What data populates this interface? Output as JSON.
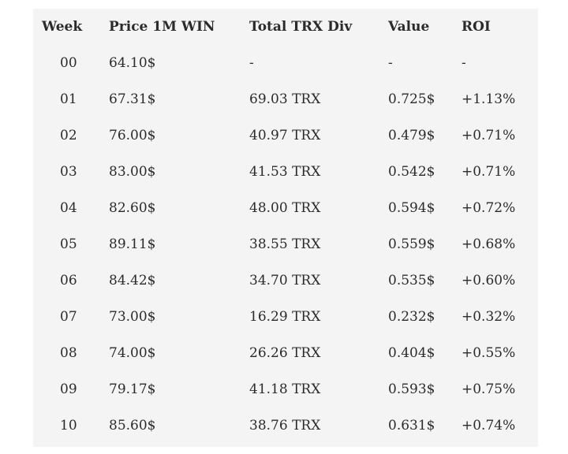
{
  "table": {
    "headers": [
      "Week",
      "Price 1M WIN",
      "Total TRX Div",
      "Value",
      "ROI"
    ],
    "rows": [
      [
        "00",
        "64.10$",
        "-",
        "-",
        "-"
      ],
      [
        "01",
        "67.31$",
        "69.03 TRX",
        "0.725$",
        "+1.13%"
      ],
      [
        "02",
        "76.00$",
        "40.97 TRX",
        "0.479$",
        "+0.71%"
      ],
      [
        "03",
        "83.00$",
        "41.53 TRX",
        "0.542$",
        "+0.71%"
      ],
      [
        "04",
        "82.60$",
        "48.00 TRX",
        "0.594$",
        "+0.72%"
      ],
      [
        "05",
        "89.11$",
        "38.55 TRX",
        "0.559$",
        "+0.68%"
      ],
      [
        "06",
        "84.42$",
        "34.70 TRX",
        "0.535$",
        "+0.60%"
      ],
      [
        "07",
        "73.00$",
        "16.29 TRX",
        "0.232$",
        "+0.32%"
      ],
      [
        "08",
        "74.00$",
        "26.26 TRX",
        "0.404$",
        "+0.55%"
      ],
      [
        "09",
        "79.17$",
        "41.18 TRX",
        "0.593$",
        "+0.75%"
      ],
      [
        "10",
        "85.60$",
        "38.76 TRX",
        "0.631$",
        "+0.74%"
      ]
    ]
  }
}
